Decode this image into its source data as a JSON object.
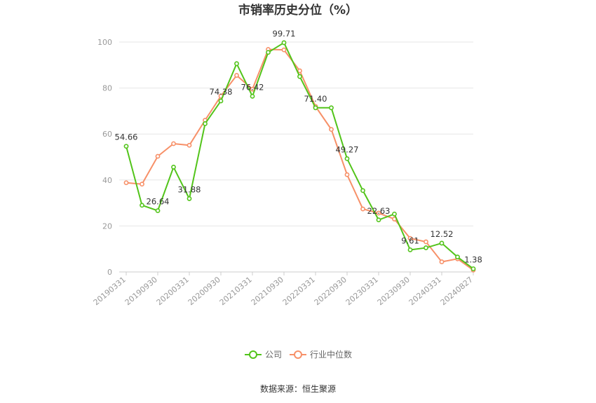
{
  "chart_data": {
    "type": "line",
    "title": "市销率历史分位（%）",
    "xlabel": "",
    "ylabel": "",
    "ylim": [
      0,
      100
    ],
    "yticks": [
      0,
      20,
      40,
      60,
      80,
      100
    ],
    "xtick_labels": [
      "20190331",
      "20190930",
      "20200331",
      "20200930",
      "20210331",
      "20210930",
      "20220331",
      "20220930",
      "20230331",
      "20230930",
      "20240331",
      "20240827"
    ],
    "legend_position": "bottom-center",
    "grid": true,
    "series": [
      {
        "name": "公司",
        "color": "#52c41a",
        "values": [
          54.66,
          29.0,
          26.64,
          45.6,
          31.88,
          64.5,
          74.38,
          90.6,
          76.42,
          95.5,
          99.71,
          85.0,
          71.4,
          71.4,
          49.27,
          35.4,
          22.63,
          25.2,
          9.61,
          10.5,
          12.52,
          6.5,
          1.38
        ],
        "labels": {
          "0": "54.66",
          "2": "26.64",
          "4": "31.88",
          "6": "74.38",
          "8": "76.42",
          "10": "99.71",
          "12": "71.40",
          "14": "49.27",
          "16": "22.63",
          "18": "9.61",
          "20": "12.52",
          "22": "1.38"
        }
      },
      {
        "name": "行业中位数",
        "color": "#f79068",
        "values": [
          38.8,
          38.2,
          50.3,
          55.8,
          55.1,
          66.0,
          76.5,
          85.5,
          79.5,
          96.8,
          96.6,
          87.5,
          72.0,
          62.0,
          42.3,
          27.4,
          25.6,
          23.0,
          14.6,
          13.1,
          4.4,
          5.7,
          0.8
        ]
      }
    ]
  },
  "legend": {
    "company_label": "公司",
    "industry_label": "行业中位数"
  },
  "footer": {
    "source": "数据来源：恒生聚源"
  }
}
